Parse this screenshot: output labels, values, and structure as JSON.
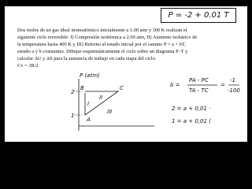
{
  "header": {
    "formula": "P = -2 + 0.01 T"
  },
  "problem": {
    "lines": [
      "Dos moles de un gas ideal monoatómico inicialmente a 1.00 atm y 300 K realizan el",
      "siguiente ciclo reversible: I) Compresión isotérmica a 2.00 atm, II) Aumento isobárico de",
      "la temperatura hasta 400 K y III) Retorno al estado inicial por el camino P = a + bT,",
      "siendo a y b constantes. Dibujar esquemáticamente el ciclo sobre un diagrama P–T y",
      "calcular ΔU y ΔS para la sustancia de trabajo en cada etapa del ciclo.",
      "Cv = 3R/2"
    ]
  },
  "diagram": {
    "y_label": "P (atm)",
    "ticks": [
      "2",
      "1"
    ],
    "points": [
      "B",
      "C",
      "A"
    ],
    "steps": [
      "I",
      "II",
      "III"
    ]
  },
  "notes": {
    "b": "b =",
    "num": "PA - PC",
    "den": "TA - TC",
    "eq": "=",
    "fnum": "-1",
    "fden": "-100",
    "line1": "2 = a + 0,01 ·",
    "line2": "1 = a + 0,01 ("
  }
}
